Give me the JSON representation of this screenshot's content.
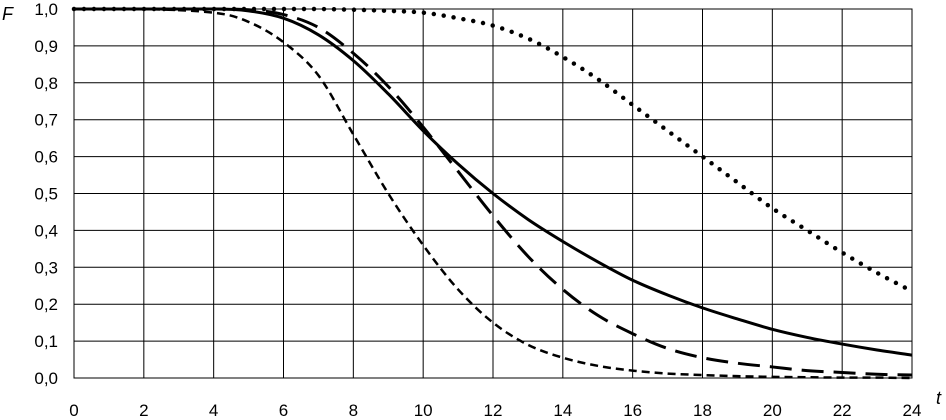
{
  "chart_data": {
    "type": "line",
    "xlabel": "t",
    "ylabel": "F",
    "xlim": [
      0,
      24
    ],
    "ylim": [
      0,
      1
    ],
    "grid": true,
    "xticks": [
      "0",
      "2",
      "4",
      "6",
      "8",
      "10",
      "12",
      "14",
      "16",
      "18",
      "20",
      "22",
      "24"
    ],
    "yticks": [
      "0,0",
      "0,1",
      "0,2",
      "0,3",
      "0,4",
      "0,5",
      "0,6",
      "0,7",
      "0,8",
      "0,9",
      "1,0"
    ],
    "x": [
      0,
      2,
      4,
      5,
      6,
      7,
      8,
      9,
      10,
      11,
      12,
      13,
      14,
      15,
      16,
      17,
      18,
      19,
      20,
      21,
      22,
      23,
      24
    ],
    "series": [
      {
        "style": "solid",
        "values": [
          1.0,
          1.0,
          1.0,
          0.995,
          0.975,
          0.93,
          0.86,
          0.77,
          0.67,
          0.58,
          0.5,
          0.43,
          0.37,
          0.315,
          0.265,
          0.225,
          0.19,
          0.16,
          0.132,
          0.11,
          0.092,
          0.076,
          0.062
        ]
      },
      {
        "style": "long-dash",
        "values": [
          1.0,
          1.0,
          1.0,
          0.998,
          0.985,
          0.95,
          0.88,
          0.79,
          0.68,
          0.56,
          0.44,
          0.33,
          0.24,
          0.17,
          0.12,
          0.08,
          0.055,
          0.04,
          0.03,
          0.02,
          0.015,
          0.01,
          0.008
        ]
      },
      {
        "style": "short-dash",
        "values": [
          1.0,
          1.0,
          0.99,
          0.965,
          0.91,
          0.82,
          0.66,
          0.5,
          0.36,
          0.24,
          0.15,
          0.09,
          0.055,
          0.033,
          0.02,
          0.012,
          0.008,
          0.005,
          0.003,
          0.002,
          0.001,
          0.001,
          0.0
        ]
      },
      {
        "style": "dotted",
        "values": [
          1.0,
          1.0,
          1.0,
          1.0,
          1.0,
          1.0,
          0.998,
          0.995,
          0.99,
          0.975,
          0.955,
          0.92,
          0.87,
          0.81,
          0.74,
          0.67,
          0.6,
          0.53,
          0.46,
          0.4,
          0.34,
          0.285,
          0.235
        ]
      }
    ]
  }
}
